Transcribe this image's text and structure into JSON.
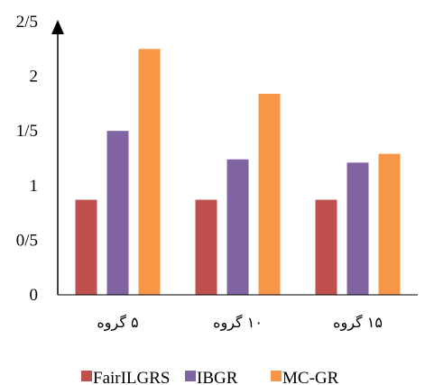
{
  "chart_data": {
    "type": "bar",
    "categories": [
      "۵ گروه",
      "۱۰ گروه",
      "۱۵ گروه"
    ],
    "yticks": [
      "0",
      "0/5",
      "1",
      "1/5",
      "2",
      "2/5"
    ],
    "ylim": [
      0,
      2.5
    ],
    "grid": false,
    "legend_position": "bottom",
    "title": "",
    "xlabel": "",
    "ylabel": "",
    "series": [
      {
        "name": "FairILGRS",
        "color": "#c0504d",
        "values": [
          0.87,
          0.87,
          0.87
        ]
      },
      {
        "name": "IBGR",
        "color": "#8064a2",
        "values": [
          1.5,
          1.24,
          1.21
        ]
      },
      {
        "name": "MC-GR",
        "color": "#f79646",
        "values": [
          2.25,
          1.84,
          1.29
        ]
      }
    ]
  }
}
